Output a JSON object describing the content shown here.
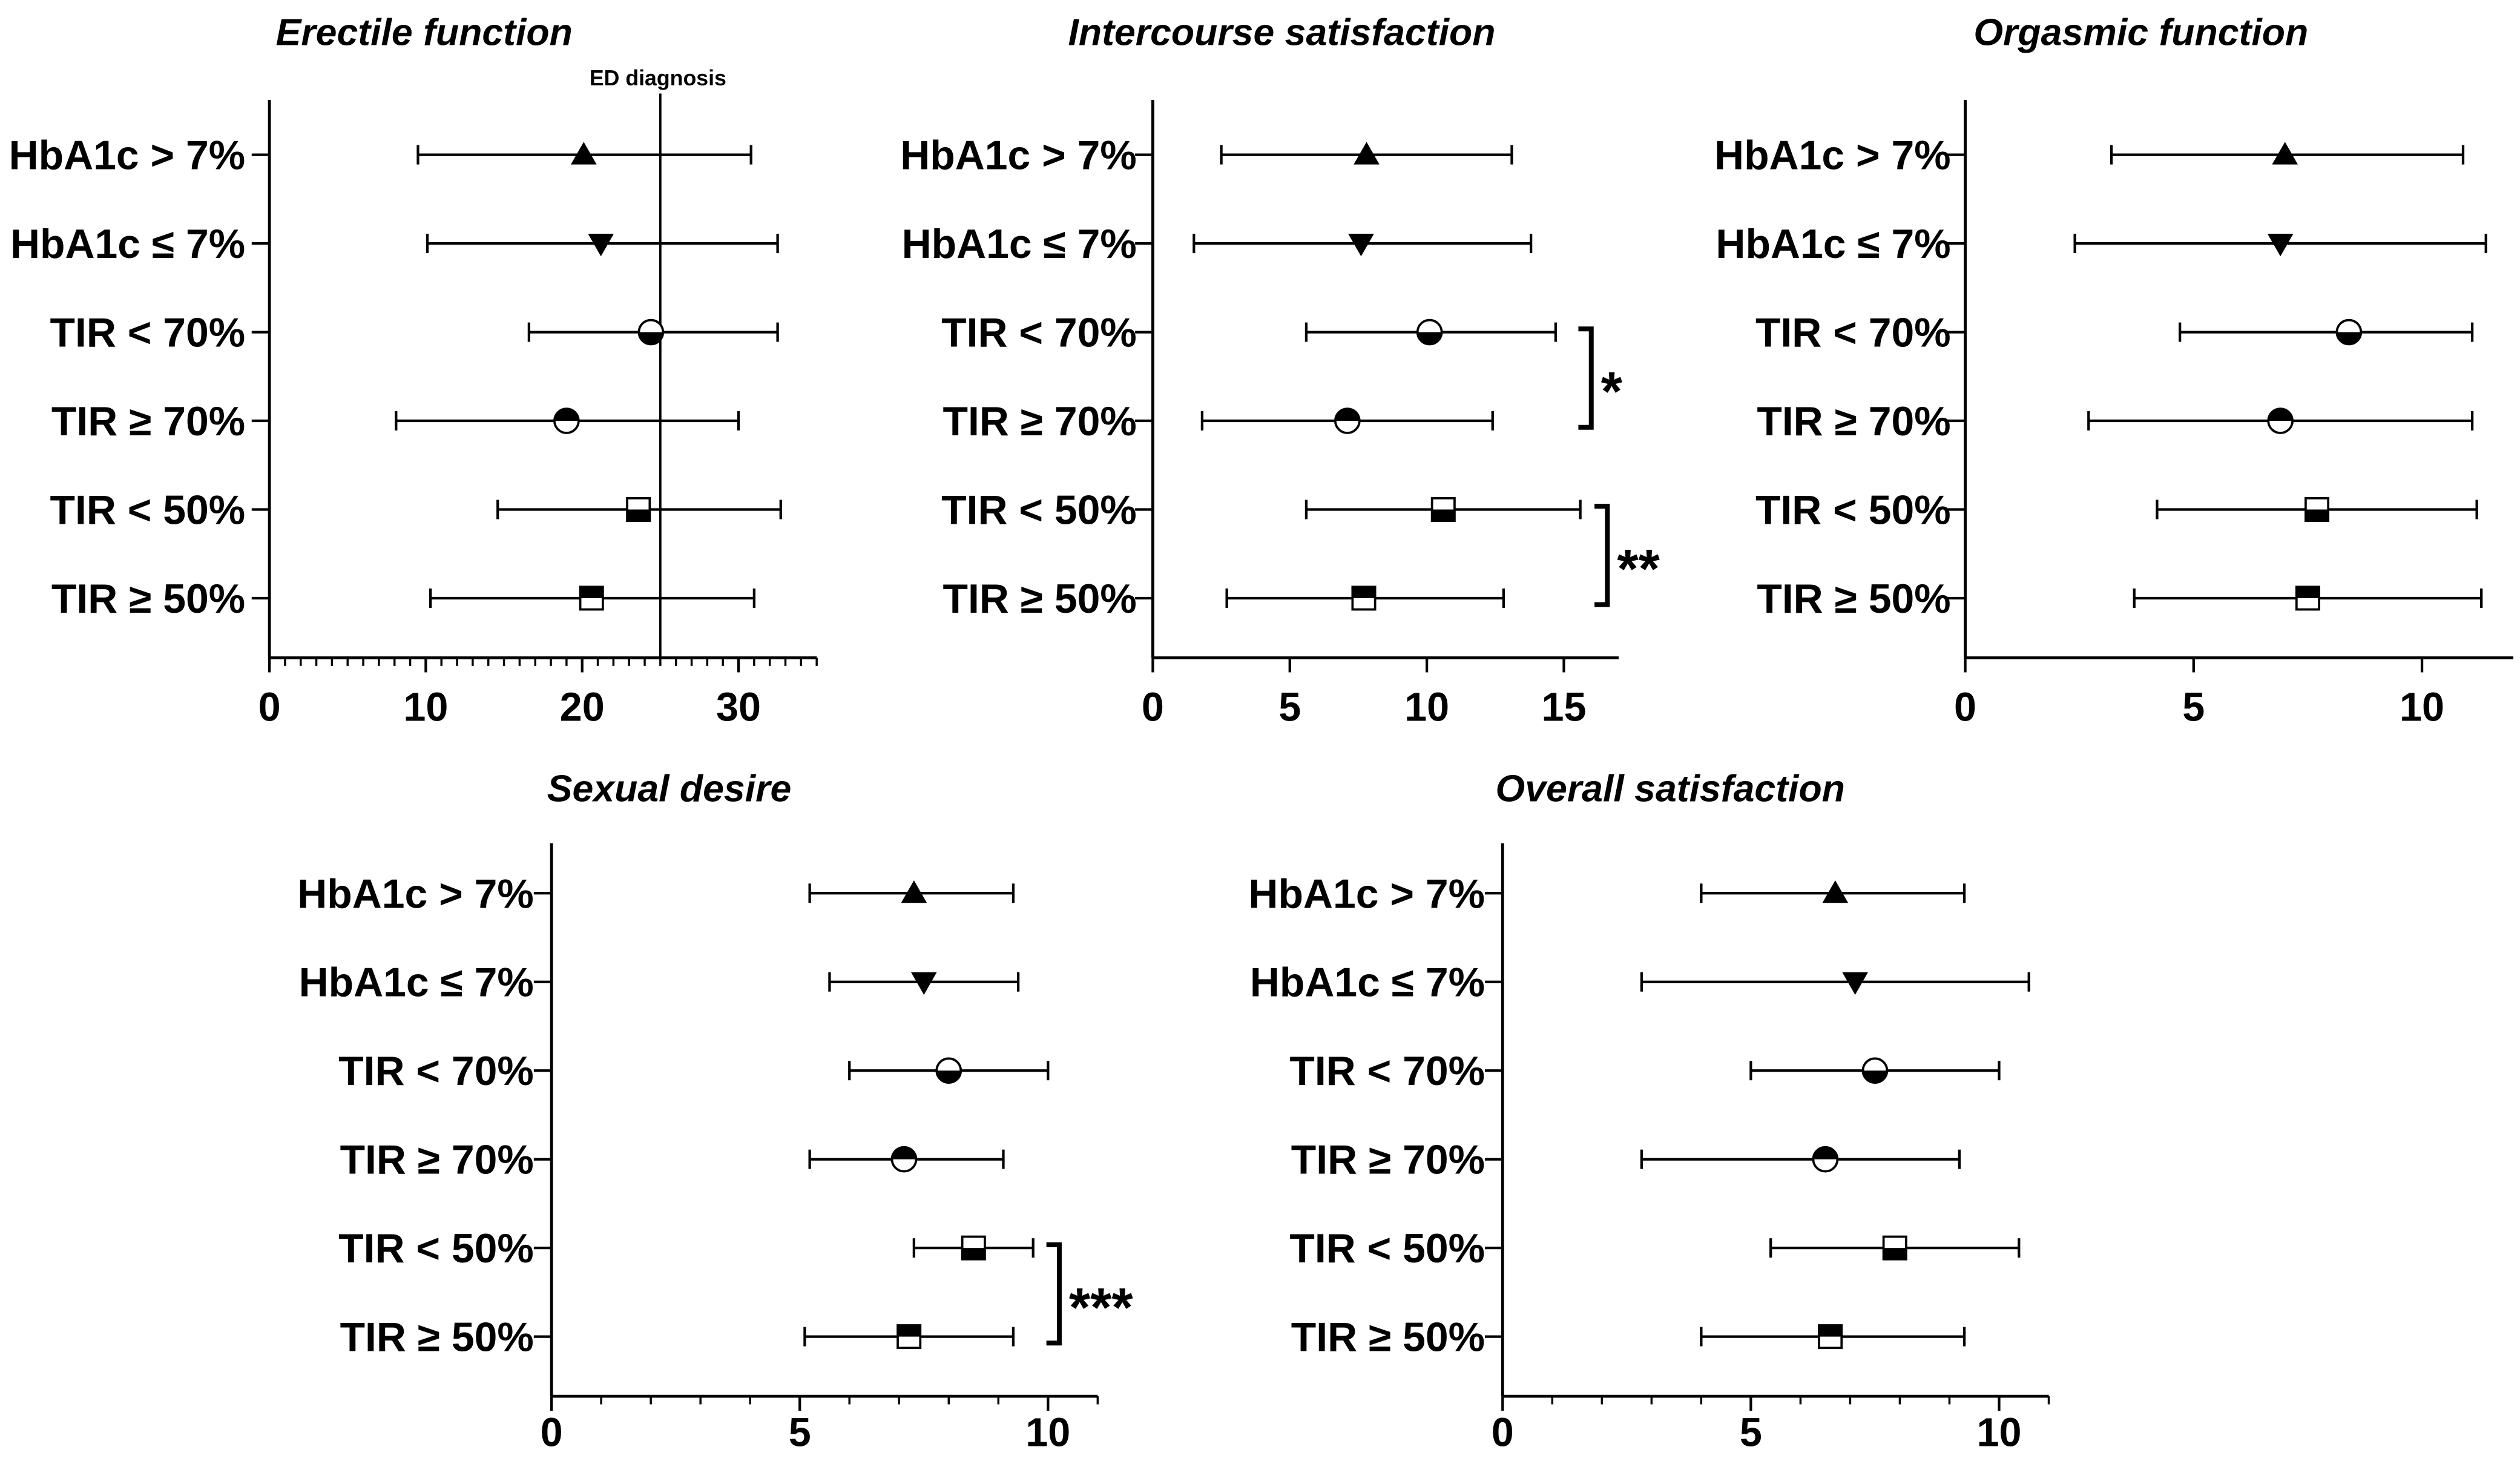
{
  "row_markers": [
    "filled-triangle-up",
    "filled-triangle-down",
    "half-filled-circle-bottom",
    "half-filled-circle-top",
    "half-filled-square-bottom",
    "half-filled-square-top"
  ],
  "chart_data": [
    {
      "type": "scatter",
      "title": "Erectile function",
      "categories": [
        "HbA1c > 7%",
        "HbA1c ≤ 7%",
        "TIR < 70%",
        "TIR ≥ 70%",
        "TIR < 50%",
        "TIR ≥ 50%"
      ],
      "values": [
        20.1,
        21.2,
        24.4,
        19.0,
        23.6,
        20.6
      ],
      "error_low": [
        9.5,
        10.1,
        16.6,
        8.1,
        14.6,
        10.3
      ],
      "error_high": [
        30.8,
        32.5,
        32.5,
        30.0,
        32.7,
        31.0
      ],
      "xlim": [
        0,
        35
      ],
      "xticks": [
        0,
        10,
        20,
        30
      ],
      "minor_tick_step": 1,
      "reference_line": {
        "x": 25,
        "label": "ED diagnosis"
      },
      "significance": []
    },
    {
      "type": "scatter",
      "title": "Intercourse satisfaction",
      "categories": [
        "HbA1c > 7%",
        "HbA1c ≤ 7%",
        "TIR < 70%",
        "TIR ≥ 70%",
        "TIR < 50%",
        "TIR ≥ 50%"
      ],
      "values": [
        7.8,
        7.6,
        10.1,
        7.1,
        10.6,
        7.7
      ],
      "error_low": [
        2.5,
        1.5,
        5.6,
        1.8,
        5.6,
        2.7
      ],
      "error_high": [
        13.1,
        13.8,
        14.7,
        12.4,
        15.6,
        12.8
      ],
      "xlim": [
        0,
        17
      ],
      "xticks": [
        0,
        5,
        10,
        15
      ],
      "minor_tick_step": null,
      "reference_line": null,
      "significance": [
        {
          "rows": [
            2,
            3
          ],
          "label": "*"
        },
        {
          "rows": [
            4,
            5
          ],
          "label": "**"
        }
      ]
    },
    {
      "type": "scatter",
      "title": "Orgasmic function",
      "categories": [
        "HbA1c > 7%",
        "HbA1c ≤ 7%",
        "TIR < 70%",
        "TIR ≥ 70%",
        "TIR < 50%",
        "TIR ≥ 50%"
      ],
      "values": [
        7.0,
        6.9,
        8.4,
        6.9,
        7.7,
        7.5
      ],
      "error_low": [
        3.2,
        2.4,
        4.7,
        2.7,
        4.2,
        3.7
      ],
      "error_high": [
        10.9,
        11.4,
        11.1,
        11.1,
        11.2,
        11.3
      ],
      "xlim": [
        0,
        12
      ],
      "xticks": [
        0,
        5,
        10
      ],
      "minor_tick_step": null,
      "reference_line": null,
      "significance": []
    },
    {
      "type": "scatter",
      "title": "Sexual desire",
      "categories": [
        "HbA1c > 7%",
        "HbA1c ≤ 7%",
        "TIR < 70%",
        "TIR ≥ 70%",
        "TIR < 50%",
        "TIR ≥ 50%"
      ],
      "values": [
        7.3,
        7.5,
        8.0,
        7.1,
        8.5,
        7.2
      ],
      "error_low": [
        5.2,
        5.6,
        6.0,
        5.2,
        7.3,
        5.1
      ],
      "error_high": [
        9.3,
        9.4,
        10.0,
        9.1,
        9.7,
        9.3
      ],
      "xlim": [
        0,
        11
      ],
      "xticks": [
        0,
        5,
        10
      ],
      "minor_tick_step": 1,
      "reference_line": null,
      "significance": [
        {
          "rows": [
            4,
            5
          ],
          "label": "***"
        }
      ]
    },
    {
      "type": "scatter",
      "title": "Overall satisfaction",
      "categories": [
        "HbA1c > 7%",
        "HbA1c ≤ 7%",
        "TIR < 70%",
        "TIR ≥ 70%",
        "TIR < 50%",
        "TIR ≥ 50%"
      ],
      "values": [
        6.7,
        7.1,
        7.5,
        6.5,
        7.9,
        6.6
      ],
      "error_low": [
        4.0,
        2.8,
        5.0,
        2.8,
        5.4,
        4.0
      ],
      "error_high": [
        9.3,
        10.6,
        10.0,
        9.2,
        10.4,
        9.3
      ],
      "xlim": [
        0,
        11
      ],
      "xticks": [
        0,
        5,
        10
      ],
      "minor_tick_step": 1,
      "reference_line": null,
      "significance": []
    }
  ]
}
